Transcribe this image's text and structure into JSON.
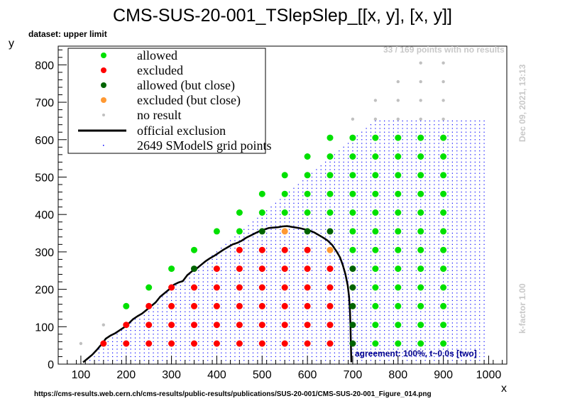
{
  "title": "CMS-SUS-20-001_TSlepSlep_[[x, y], [x, y]]",
  "dataset_label": "dataset: upper limit",
  "points_note": "33 / 169 points with no results",
  "date_note": "Dec 09, 2021, 13:13",
  "kfactor_note": "k-factor 1.00",
  "agreement_note": "agreement: 100%, t~0.0s [two]",
  "source_url": "https://cms-results.web.cern.ch/cms-results/public-results/publications/SUS-20-001/CMS-SUS-20-001_Figure_014.png",
  "colors": {
    "allowed": "#00e000",
    "excluded": "#ff0000",
    "allowed_close": "#006400",
    "excluded_close": "#ff9933",
    "no_result": "#c0c0c0",
    "grid": "#0000ff",
    "official": "#000000"
  },
  "chart_data": {
    "type": "scatter",
    "title": "CMS-SUS-20-001_TSlepSlep_[[x, y], [x, y]]",
    "xlabel": "x",
    "ylabel": "y",
    "xlim": [
      50,
      1040
    ],
    "ylim": [
      0,
      850
    ],
    "xticks": [
      100,
      200,
      300,
      400,
      500,
      600,
      700,
      800,
      900,
      1000
    ],
    "yticks": [
      0,
      100,
      200,
      300,
      400,
      500,
      600,
      700,
      800
    ],
    "legend": {
      "placement": "top-left",
      "entries": [
        "allowed",
        "excluded",
        "allowed (but close)",
        "excluded (but close)",
        "no result",
        "official exclusion",
        "2649 SModelS grid points"
      ]
    },
    "series": [
      {
        "name": "allowed",
        "points": [
          [
            200,
            155
          ],
          [
            250,
            205
          ],
          [
            300,
            255
          ],
          [
            350,
            305
          ],
          [
            400,
            355
          ],
          [
            450,
            405
          ],
          [
            500,
            455
          ],
          [
            550,
            505
          ],
          [
            600,
            555
          ],
          [
            650,
            605
          ],
          [
            450,
            355
          ],
          [
            500,
            405
          ],
          [
            550,
            455
          ],
          [
            600,
            505
          ],
          [
            650,
            555
          ],
          [
            550,
            405
          ],
          [
            600,
            455
          ],
          [
            650,
            505
          ],
          [
            600,
            405
          ],
          [
            650,
            455
          ],
          [
            650,
            405
          ],
          [
            700,
            605
          ],
          [
            700,
            555
          ],
          [
            700,
            505
          ],
          [
            700,
            455
          ],
          [
            700,
            405
          ],
          [
            700,
            355
          ],
          [
            700,
            305
          ],
          [
            750,
            605
          ],
          [
            750,
            555
          ],
          [
            750,
            505
          ],
          [
            750,
            455
          ],
          [
            750,
            405
          ],
          [
            750,
            355
          ],
          [
            750,
            305
          ],
          [
            750,
            255
          ],
          [
            750,
            205
          ],
          [
            750,
            155
          ],
          [
            750,
            105
          ],
          [
            750,
            55
          ],
          [
            800,
            605
          ],
          [
            800,
            555
          ],
          [
            800,
            505
          ],
          [
            800,
            455
          ],
          [
            800,
            405
          ],
          [
            800,
            355
          ],
          [
            800,
            305
          ],
          [
            800,
            255
          ],
          [
            800,
            205
          ],
          [
            800,
            155
          ],
          [
            800,
            105
          ],
          [
            800,
            55
          ],
          [
            850,
            605
          ],
          [
            850,
            555
          ],
          [
            850,
            505
          ],
          [
            850,
            455
          ],
          [
            850,
            405
          ],
          [
            850,
            355
          ],
          [
            850,
            305
          ],
          [
            850,
            255
          ],
          [
            850,
            205
          ],
          [
            850,
            155
          ],
          [
            850,
            105
          ],
          [
            850,
            55
          ],
          [
            900,
            605
          ],
          [
            900,
            555
          ],
          [
            900,
            505
          ],
          [
            900,
            455
          ],
          [
            900,
            405
          ],
          [
            900,
            355
          ],
          [
            900,
            305
          ],
          [
            900,
            255
          ],
          [
            900,
            205
          ],
          [
            900,
            155
          ],
          [
            900,
            105
          ],
          [
            900,
            55
          ]
        ]
      },
      {
        "name": "excluded",
        "points": [
          [
            150,
            55
          ],
          [
            200,
            55
          ],
          [
            250,
            55
          ],
          [
            300,
            55
          ],
          [
            350,
            55
          ],
          [
            400,
            55
          ],
          [
            450,
            55
          ],
          [
            500,
            55
          ],
          [
            550,
            55
          ],
          [
            600,
            55
          ],
          [
            650,
            55
          ],
          [
            200,
            105
          ],
          [
            250,
            105
          ],
          [
            300,
            105
          ],
          [
            350,
            105
          ],
          [
            400,
            105
          ],
          [
            450,
            105
          ],
          [
            500,
            105
          ],
          [
            550,
            105
          ],
          [
            600,
            105
          ],
          [
            650,
            105
          ],
          [
            250,
            155
          ],
          [
            300,
            155
          ],
          [
            350,
            155
          ],
          [
            400,
            155
          ],
          [
            450,
            155
          ],
          [
            500,
            155
          ],
          [
            550,
            155
          ],
          [
            600,
            155
          ],
          [
            650,
            155
          ],
          [
            300,
            205
          ],
          [
            350,
            205
          ],
          [
            400,
            205
          ],
          [
            450,
            205
          ],
          [
            500,
            205
          ],
          [
            550,
            205
          ],
          [
            600,
            205
          ],
          [
            650,
            205
          ],
          [
            400,
            255
          ],
          [
            450,
            255
          ],
          [
            500,
            255
          ],
          [
            550,
            255
          ],
          [
            600,
            255
          ],
          [
            650,
            255
          ],
          [
            450,
            305
          ],
          [
            500,
            305
          ],
          [
            550,
            305
          ],
          [
            600,
            305
          ]
        ]
      },
      {
        "name": "allowed (but close)",
        "points": [
          [
            350,
            255
          ],
          [
            500,
            355
          ],
          [
            600,
            355
          ],
          [
            650,
            355
          ],
          [
            700,
            255
          ],
          [
            700,
            205
          ],
          [
            700,
            155
          ],
          [
            700,
            105
          ],
          [
            700,
            55
          ]
        ]
      },
      {
        "name": "excluded (but close)",
        "points": [
          [
            550,
            355
          ],
          [
            650,
            305
          ]
        ]
      },
      {
        "name": "no result",
        "points": [
          [
            100,
            55
          ],
          [
            150,
            105
          ],
          [
            700,
            655
          ],
          [
            750,
            655
          ],
          [
            800,
            655
          ],
          [
            850,
            655
          ],
          [
            900,
            655
          ],
          [
            750,
            705
          ],
          [
            800,
            705
          ],
          [
            850,
            705
          ],
          [
            900,
            705
          ],
          [
            800,
            755
          ],
          [
            850,
            755
          ],
          [
            900,
            755
          ],
          [
            850,
            805
          ],
          [
            900,
            805
          ]
        ]
      },
      {
        "name": "official exclusion",
        "points": [
          [
            105,
            5
          ],
          [
            115,
            15
          ],
          [
            125,
            25
          ],
          [
            135,
            38
          ],
          [
            145,
            52
          ],
          [
            155,
            68
          ],
          [
            165,
            76
          ],
          [
            175,
            82
          ],
          [
            185,
            90
          ],
          [
            195,
            98
          ],
          [
            205,
            108
          ],
          [
            215,
            120
          ],
          [
            225,
            128
          ],
          [
            235,
            135
          ],
          [
            245,
            145
          ],
          [
            255,
            155
          ],
          [
            265,
            165
          ],
          [
            275,
            180
          ],
          [
            285,
            190
          ],
          [
            295,
            200
          ],
          [
            305,
            212
          ],
          [
            315,
            218
          ],
          [
            325,
            222
          ],
          [
            335,
            238
          ],
          [
            345,
            248
          ],
          [
            355,
            255
          ],
          [
            365,
            265
          ],
          [
            375,
            275
          ],
          [
            385,
            283
          ],
          [
            395,
            290
          ],
          [
            405,
            298
          ],
          [
            415,
            306
          ],
          [
            425,
            313
          ],
          [
            435,
            320
          ],
          [
            445,
            324
          ],
          [
            455,
            330
          ],
          [
            465,
            338
          ],
          [
            475,
            344
          ],
          [
            485,
            350
          ],
          [
            495,
            356
          ],
          [
            505,
            360
          ],
          [
            515,
            364
          ],
          [
            525,
            365
          ],
          [
            535,
            366
          ],
          [
            545,
            368
          ],
          [
            555,
            369
          ],
          [
            565,
            367
          ],
          [
            575,
            365
          ],
          [
            585,
            363
          ],
          [
            595,
            360
          ],
          [
            605,
            357
          ],
          [
            615,
            352
          ],
          [
            625,
            345
          ],
          [
            635,
            338
          ],
          [
            645,
            330
          ],
          [
            655,
            318
          ],
          [
            665,
            300
          ],
          [
            672,
            285
          ],
          [
            678,
            265
          ],
          [
            684,
            240
          ],
          [
            689,
            210
          ],
          [
            692,
            180
          ],
          [
            694,
            140
          ],
          [
            695,
            100
          ],
          [
            696,
            50
          ],
          [
            697,
            5
          ]
        ]
      }
    ]
  }
}
